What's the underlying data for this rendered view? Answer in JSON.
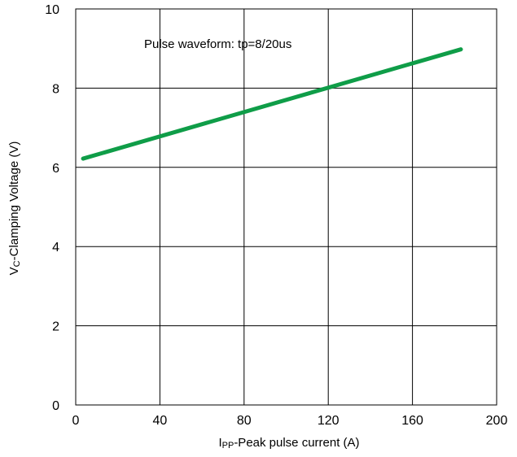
{
  "chart_data": {
    "type": "line",
    "title": "",
    "annotation": "Pulse waveform: tp=8/20us",
    "xlabel": {
      "main": "I",
      "sub": "PP",
      "rest": "-Peak pulse current (A)"
    },
    "ylabel": {
      "main": "V",
      "sub": "C",
      "rest": "-Clamping Voltage (V)"
    },
    "xlim": [
      0,
      200
    ],
    "ylim": [
      0,
      10
    ],
    "xticks": [
      0,
      40,
      80,
      120,
      160,
      200
    ],
    "yticks": [
      0,
      2,
      4,
      6,
      8,
      10
    ],
    "grid": true,
    "series": [
      {
        "color": "#0f9d48",
        "x": [
          3.5,
          183
        ],
        "y": [
          6.22,
          8.98
        ]
      }
    ]
  }
}
